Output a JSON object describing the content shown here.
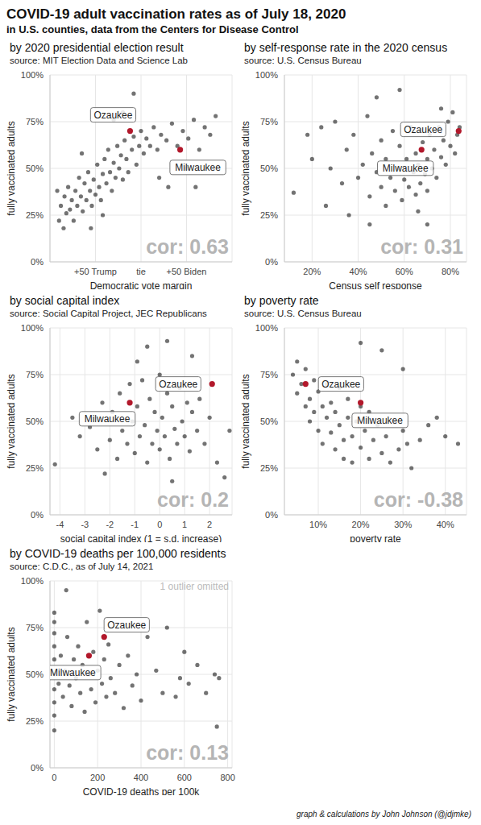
{
  "title": "COVID-19 adult vaccination rates as of July 18, 2020",
  "subtitle": "in U.S. counties, data from the Centers for Disease Control",
  "caption": "graph & calculations by John Johnson (@jdjmke)",
  "chart_data": [
    {
      "type": "scatter",
      "title": "by 2020 presidential election result",
      "subtitle": "source: MIT Election Data and Science Lab",
      "x_label": "Democratic vote margin",
      "y_label": "fully vaccinated adults",
      "annotation": "cor: 0.63",
      "grid": true,
      "color": "#000000",
      "xlim": [
        -100,
        100
      ],
      "xticks": [
        {
          "value": -50,
          "label": "+50 Trump"
        },
        {
          "value": 0,
          "label": "tie"
        },
        {
          "value": 50,
          "label": "+50 Biden"
        }
      ],
      "ylim": [
        0,
        100
      ],
      "yticks": [
        {
          "value": 0,
          "label": "0%"
        },
        {
          "value": 25,
          "label": "25%"
        },
        {
          "value": 50,
          "label": "50%"
        },
        {
          "value": 75,
          "label": "75%"
        },
        {
          "value": 100,
          "label": "100%"
        }
      ],
      "x": [
        -90,
        -88,
        -85,
        -84,
        -82,
        -80,
        -78,
        -76,
        -74,
        -72,
        -70,
        -68,
        -66,
        -64,
        -62,
        -60,
        -58,
        -56,
        -54,
        -52,
        -50,
        -48,
        -46,
        -44,
        -42,
        -40,
        -38,
        -36,
        -34,
        -32,
        -30,
        -28,
        -26,
        -24,
        -22,
        -20,
        -18,
        -16,
        -14,
        -10,
        -8,
        -5,
        -2,
        0,
        3,
        6,
        10,
        14,
        18,
        22,
        28,
        34,
        40,
        46,
        52,
        58,
        64,
        70,
        76,
        82,
        -30,
        -20,
        -55,
        -65,
        20,
        30,
        50,
        -92,
        -42,
        -8,
        60
      ],
      "values": [
        22,
        30,
        18,
        35,
        26,
        40,
        28,
        33,
        22,
        38,
        30,
        45,
        35,
        27,
        42,
        33,
        48,
        38,
        30,
        44,
        36,
        52,
        40,
        33,
        47,
        55,
        42,
        60,
        48,
        38,
        53,
        45,
        62,
        50,
        57,
        44,
        65,
        55,
        48,
        60,
        67,
        52,
        62,
        70,
        58,
        66,
        62,
        72,
        60,
        68,
        65,
        74,
        62,
        70,
        66,
        76,
        60,
        72,
        68,
        78,
        76,
        80,
        18,
        58,
        45,
        40,
        50,
        38,
        25,
        90,
        40
      ],
      "highlights": [
        {
          "name": "Ozaukee",
          "x": -12,
          "y": 70,
          "color": "#b2182b"
        },
        {
          "name": "Milwaukee",
          "x": 43,
          "y": 60,
          "color": "#b2182b"
        }
      ]
    },
    {
      "type": "scatter",
      "title": "by self-response rate in the 2020 census",
      "subtitle": "source: U.S. Census Bureau",
      "x_label": "Census self response",
      "y_label": "fully vaccinated adults",
      "annotation": "cor: 0.31",
      "grid": true,
      "color": "#000000",
      "xlim": [
        8,
        87
      ],
      "xticks": [
        {
          "value": 20,
          "label": "20%"
        },
        {
          "value": 40,
          "label": "40%"
        },
        {
          "value": 60,
          "label": "60%"
        },
        {
          "value": 80,
          "label": "80%"
        }
      ],
      "ylim": [
        0,
        100
      ],
      "yticks": [
        {
          "value": 0,
          "label": "0%"
        },
        {
          "value": 25,
          "label": "25%"
        },
        {
          "value": 50,
          "label": "50%"
        },
        {
          "value": 75,
          "label": "75%"
        },
        {
          "value": 100,
          "label": "100%"
        }
      ],
      "x": [
        12,
        18,
        20,
        24,
        28,
        30,
        33,
        35,
        38,
        40,
        42,
        44,
        45,
        46,
        48,
        50,
        50,
        52,
        52,
        54,
        55,
        56,
        57,
        58,
        59,
        60,
        61,
        62,
        63,
        64,
        65,
        65,
        66,
        67,
        68,
        69,
        70,
        70,
        71,
        72,
        73,
        74,
        75,
        76,
        77,
        78,
        79,
        80,
        81,
        82,
        83,
        84,
        26,
        36,
        48,
        58,
        45,
        66,
        76,
        70
      ],
      "values": [
        37,
        68,
        55,
        72,
        50,
        75,
        42,
        60,
        68,
        45,
        52,
        78,
        35,
        58,
        48,
        40,
        65,
        30,
        55,
        45,
        70,
        38,
        50,
        62,
        33,
        44,
        55,
        40,
        72,
        48,
        36,
        58,
        52,
        42,
        64,
        47,
        55,
        38,
        68,
        50,
        60,
        45,
        72,
        56,
        65,
        52,
        75,
        62,
        80,
        58,
        68,
        72,
        30,
        25,
        88,
        92,
        20,
        27,
        82,
        20
      ],
      "highlights": [
        {
          "name": "Ozaukee",
          "x": 83.6,
          "y": 70,
          "color": "#b2182b"
        },
        {
          "name": "Milwaukee",
          "x": 67.5,
          "y": 60,
          "color": "#b2182b"
        }
      ]
    },
    {
      "type": "scatter",
      "title": "by social capital index",
      "subtitle": "source: Social Capital Project, JEC Republicans",
      "x_label": "social capital index (1 = s.d. increase)",
      "y_label": "fully vaccinated adults",
      "annotation": "cor: 0.2",
      "grid": true,
      "color": "#000000",
      "xlim": [
        -4.4,
        2.9
      ],
      "xticks": [
        -4,
        -3,
        -2,
        -1,
        0,
        1,
        2
      ],
      "ylim": [
        0,
        100
      ],
      "yticks": [
        {
          "value": 0,
          "label": "0%"
        },
        {
          "value": 25,
          "label": "25%"
        },
        {
          "value": 50,
          "label": "50%"
        },
        {
          "value": 75,
          "label": "75%"
        },
        {
          "value": 100,
          "label": "100%"
        }
      ],
      "x": [
        -4.2,
        -3.5,
        -3.2,
        -2.8,
        -2.5,
        -2.3,
        -2,
        -1.9,
        -1.7,
        -1.6,
        -1.5,
        -1.3,
        -1.2,
        -1.1,
        -1,
        -0.9,
        -0.8,
        -0.7,
        -0.6,
        -0.5,
        -0.4,
        -0.3,
        -0.2,
        -0.1,
        0,
        0,
        0.1,
        0.2,
        0.3,
        0.4,
        0.5,
        0.6,
        0.7,
        0.8,
        0.9,
        1,
        1.1,
        1.2,
        1.3,
        1.5,
        1.6,
        1.8,
        2,
        2.3,
        2.6,
        2.8,
        -0.5,
        0.3,
        1.3,
        -2.2,
        0.5,
        -0.9
      ],
      "values": [
        27,
        52,
        42,
        47,
        35,
        60,
        40,
        55,
        30,
        65,
        45,
        38,
        70,
        50,
        33,
        58,
        42,
        72,
        48,
        28,
        62,
        38,
        55,
        45,
        75,
        35,
        52,
        42,
        65,
        30,
        58,
        46,
        38,
        68,
        50,
        42,
        60,
        34,
        55,
        45,
        62,
        38,
        52,
        28,
        20,
        45,
        90,
        93,
        85,
        22,
        18,
        82
      ],
      "highlights": [
        {
          "name": "Ozaukee",
          "x": 2.1,
          "y": 70,
          "color": "#b2182b"
        },
        {
          "name": "Milwaukee",
          "x": -1.2,
          "y": 60,
          "color": "#b2182b"
        }
      ]
    },
    {
      "type": "scatter",
      "title": "by poverty rate",
      "subtitle": "source: U.S. Census Bureau",
      "x_label": "poverty rate",
      "y_label": "fully vaccinated adults",
      "annotation": "cor: -0.38",
      "grid": true,
      "color": "#000000",
      "xlim": [
        2,
        45
      ],
      "xticks": [
        {
          "value": 10,
          "label": "10%"
        },
        {
          "value": 20,
          "label": "20%"
        },
        {
          "value": 30,
          "label": "30%"
        },
        {
          "value": 40,
          "label": "40%"
        }
      ],
      "ylim": [
        0,
        100
      ],
      "yticks": [
        {
          "value": 0,
          "label": "0%"
        },
        {
          "value": 25,
          "label": "25%"
        },
        {
          "value": 50,
          "label": "50%"
        },
        {
          "value": 75,
          "label": "75%"
        },
        {
          "value": 100,
          "label": "100%"
        }
      ],
      "x": [
        4,
        5,
        5,
        6,
        7,
        7,
        8,
        8,
        9,
        9,
        10,
        10,
        11,
        11,
        12,
        12,
        13,
        13,
        14,
        14,
        15,
        15,
        16,
        16,
        17,
        17,
        18,
        18,
        19,
        20,
        20,
        21,
        22,
        22,
        23,
        24,
        25,
        26,
        27,
        28,
        29,
        30,
        31,
        32,
        34,
        36,
        38,
        40,
        43,
        20,
        25,
        30
      ],
      "values": [
        75,
        82,
        65,
        70,
        58,
        78,
        62,
        50,
        72,
        55,
        45,
        66,
        58,
        38,
        52,
        70,
        44,
        60,
        35,
        55,
        48,
        68,
        40,
        30,
        52,
        62,
        42,
        28,
        50,
        36,
        58,
        45,
        30,
        55,
        40,
        48,
        33,
        42,
        28,
        50,
        35,
        45,
        38,
        25,
        40,
        48,
        52,
        42,
        38,
        92,
        88,
        78
      ],
      "highlights": [
        {
          "name": "Ozaukee",
          "x": 7,
          "y": 70,
          "color": "#b2182b"
        },
        {
          "name": "Milwaukee",
          "x": 20,
          "y": 60,
          "color": "#b2182b"
        }
      ]
    },
    {
      "type": "scatter",
      "title": "by COVID-19 deaths per 100,000 residents",
      "subtitle": "source: C.D.C., as of July 14, 2021",
      "x_label": "COVID-19 deaths per 100k",
      "y_label": "fully vaccinated adults",
      "annotation": "cor: 0.13",
      "note": "1 outlier omitted",
      "grid": true,
      "color": "#000000",
      "xlim": [
        -20,
        820
      ],
      "xticks": [
        0,
        200,
        400,
        600,
        800
      ],
      "ylim": [
        0,
        100
      ],
      "yticks": [
        {
          "value": 0,
          "label": "0%"
        },
        {
          "value": 25,
          "label": "25%"
        },
        {
          "value": 50,
          "label": "50%"
        },
        {
          "value": 75,
          "label": "75%"
        },
        {
          "value": 100,
          "label": "100%"
        }
      ],
      "x": [
        0,
        0,
        0,
        0,
        0,
        0,
        0,
        0,
        0,
        0,
        20,
        30,
        40,
        50,
        55,
        60,
        70,
        80,
        90,
        100,
        110,
        120,
        130,
        140,
        150,
        160,
        170,
        180,
        190,
        200,
        210,
        220,
        230,
        240,
        250,
        260,
        280,
        300,
        320,
        340,
        360,
        380,
        400,
        430,
        470,
        500,
        520,
        560,
        580,
        600,
        620,
        700,
        740,
        760,
        750,
        660
      ],
      "values": [
        20,
        28,
        35,
        42,
        50,
        58,
        65,
        72,
        78,
        83,
        45,
        60,
        38,
        52,
        95,
        70,
        44,
        33,
        58,
        48,
        65,
        40,
        55,
        30,
        78,
        50,
        42,
        62,
        35,
        52,
        84,
        45,
        58,
        38,
        66,
        48,
        40,
        55,
        32,
        60,
        44,
        50,
        36,
        70,
        52,
        40,
        75,
        38,
        48,
        62,
        45,
        40,
        50,
        48,
        22,
        55
      ],
      "highlights": [
        {
          "name": "Ozaukee",
          "x": 230,
          "y": 70,
          "color": "#b2182b"
        },
        {
          "name": "Milwaukee",
          "x": 160,
          "y": 60,
          "color": "#b2182b"
        }
      ]
    }
  ]
}
